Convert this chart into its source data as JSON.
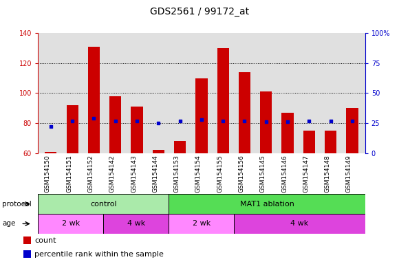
{
  "title": "GDS2561 / 99172_at",
  "samples": [
    "GSM154150",
    "GSM154151",
    "GSM154152",
    "GSM154142",
    "GSM154143",
    "GSM154144",
    "GSM154153",
    "GSM154154",
    "GSM154155",
    "GSM154156",
    "GSM154145",
    "GSM154146",
    "GSM154147",
    "GSM154148",
    "GSM154149"
  ],
  "counts": [
    61,
    92,
    131,
    98,
    91,
    62,
    68,
    110,
    130,
    114,
    101,
    87,
    75,
    75,
    90
  ],
  "percentiles": [
    22,
    27,
    29,
    27,
    27,
    25,
    27,
    28,
    27,
    27,
    26,
    26,
    27,
    27,
    27
  ],
  "ylim_left": [
    60,
    140
  ],
  "ylim_right": [
    0,
    100
  ],
  "yticks_left": [
    60,
    80,
    100,
    120,
    140
  ],
  "yticks_right": [
    0,
    25,
    50,
    75,
    100
  ],
  "bar_color": "#cc0000",
  "dot_color": "#0000cc",
  "bar_bottom": 60,
  "protocol_groups": [
    {
      "label": "control",
      "start": 0,
      "end": 6,
      "color": "#aaeaaa"
    },
    {
      "label": "MAT1 ablation",
      "start": 6,
      "end": 15,
      "color": "#55dd55"
    }
  ],
  "age_groups": [
    {
      "label": "2 wk",
      "start": 0,
      "end": 3,
      "color": "#ff88ff"
    },
    {
      "label": "4 wk",
      "start": 3,
      "end": 6,
      "color": "#dd44dd"
    },
    {
      "label": "2 wk",
      "start": 6,
      "end": 9,
      "color": "#ff88ff"
    },
    {
      "label": "4 wk",
      "start": 9,
      "end": 15,
      "color": "#dd44dd"
    }
  ],
  "title_fontsize": 10,
  "tick_fontsize": 7,
  "label_fontsize": 7.5,
  "legend_fontsize": 8
}
